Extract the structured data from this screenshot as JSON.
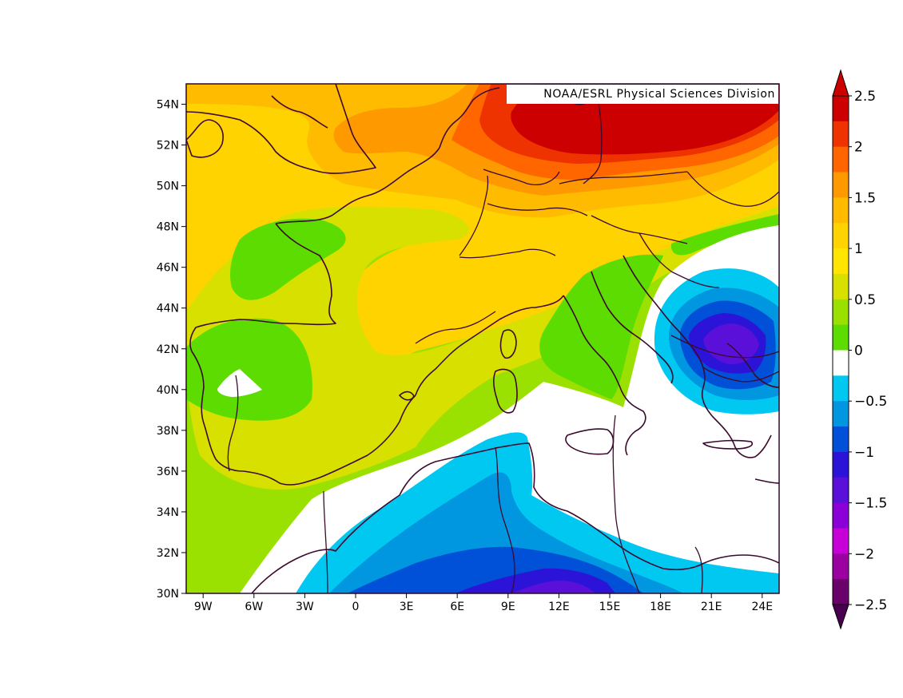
{
  "credit": "NOAA/ESRL Physical Sciences Division",
  "map_data": {
    "region": {
      "lon_min": -10,
      "lon_max": 25,
      "lat_min": 30,
      "lat_max": 55
    },
    "lon_ticks": [
      -9,
      -6,
      -3,
      0,
      3,
      6,
      9,
      12,
      15,
      18,
      21,
      24
    ],
    "lon_tick_labels": [
      "9W",
      "6W",
      "3W",
      "0",
      "3E",
      "6E",
      "9E",
      "12E",
      "15E",
      "18E",
      "21E",
      "24E"
    ],
    "lat_ticks": [
      30,
      32,
      34,
      36,
      38,
      40,
      42,
      44,
      46,
      48,
      50,
      52,
      54
    ],
    "lat_tick_labels": [
      "30N",
      "32N",
      "34N",
      "36N",
      "38N",
      "40N",
      "42N",
      "44N",
      "46N",
      "48N",
      "50N",
      "52N",
      "54N"
    ],
    "colorbar": {
      "labels": [
        "2.5",
        "2",
        "1.5",
        "1",
        "0.5",
        "0",
        "−0.5",
        "−1",
        "−1.5",
        "−2",
        "−2.5"
      ],
      "levels": [
        2.5,
        2,
        1.5,
        1,
        0.5,
        0,
        -0.5,
        -1,
        -1.5,
        -2,
        -2.5
      ],
      "colors_top_to_bottom": [
        "#cc0000",
        "#ee3300",
        "#ff6600",
        "#ff9900",
        "#ffbb00",
        "#ffd300",
        "#ffe500",
        "#d8e000",
        "#9ae000",
        "#5cdc00",
        "#ffffff",
        "#00c8f0",
        "#0096e0",
        "#0050d8",
        "#2b14d8",
        "#5a10d8",
        "#8c00d8",
        "#c800d8",
        "#9b00a0",
        "#6a006a"
      ],
      "top_arrow_color": "#cc0000",
      "bottom_arrow_color": "#4a0050"
    }
  }
}
